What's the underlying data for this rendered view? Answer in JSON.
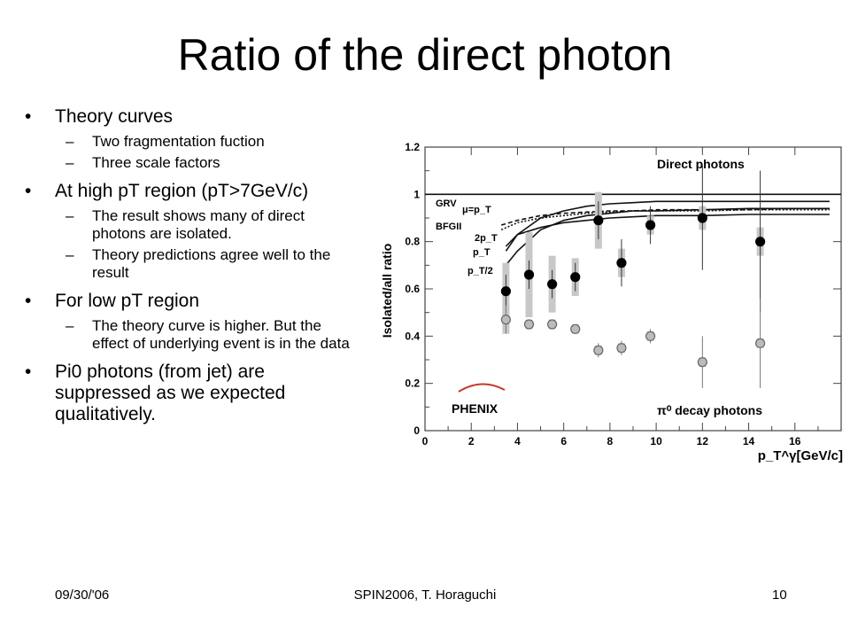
{
  "slide": {
    "title": "Ratio of the direct photon",
    "bullets": [
      {
        "text": "Theory curves",
        "sub": [
          "Two fragmentation fuction",
          "Three scale factors"
        ]
      },
      {
        "text": "At high pT region (pT>7GeV/c)",
        "sub": [
          "The result shows many of direct photons are isolated.",
          "Theory predictions agree well to the result"
        ]
      },
      {
        "text": "For low pT region",
        "sub": [
          "The theory curve is higher. But the effect of underlying event is in the data"
        ]
      },
      {
        "text": "Pi0 photons (from jet) are suppressed as we expected qualitatively.",
        "sub": []
      }
    ]
  },
  "footer": {
    "date": "09/30/'06",
    "center": "SPIN2006, T. Horaguchi",
    "page": "10"
  },
  "chart_data": {
    "type": "scatter",
    "title": "",
    "xlabel": "p_T^γ[GeV/c]",
    "ylabel": "Isolated/all ratio",
    "xlim": [
      0,
      18
    ],
    "ylim": [
      0,
      1.2
    ],
    "xticks": [
      "0",
      "2",
      "4",
      "6",
      "8",
      "10",
      "12",
      "14",
      "16"
    ],
    "yticks": [
      "0",
      "0.2",
      "0.4",
      "0.6",
      "0.8",
      "1",
      "1.2"
    ],
    "annotations": {
      "direct": "Direct photons",
      "pi0": "π⁰ decay photons",
      "logo": "PHENIX"
    },
    "theory_labels": [
      "GRV",
      "μ=p_T",
      "BFGII",
      "2p_T",
      "p_T",
      "p_T/2"
    ],
    "series": [
      {
        "name": "Direct photons",
        "marker": "filled-circle",
        "color": "#000000",
        "x": [
          3.5,
          4.5,
          5.5,
          6.5,
          7.5,
          8.5,
          9.75,
          12.0,
          14.5
        ],
        "y": [
          0.59,
          0.66,
          0.62,
          0.65,
          0.89,
          0.71,
          0.87,
          0.9,
          0.8
        ],
        "err": [
          0.07,
          0.06,
          0.06,
          0.06,
          0.08,
          0.1,
          0.08,
          0.22,
          0.3
        ],
        "sys": [
          0.12,
          0.18,
          0.12,
          0.08,
          0.12,
          0.06,
          0.04,
          0.05,
          0.06
        ]
      },
      {
        "name": "π⁰ decay photons",
        "marker": "open-circle",
        "color": "#bbbbbb",
        "x": [
          3.5,
          4.5,
          5.5,
          6.5,
          7.5,
          8.5,
          9.75,
          12.0,
          14.5
        ],
        "y": [
          0.47,
          0.45,
          0.45,
          0.43,
          0.34,
          0.35,
          0.4,
          0.29,
          0.37
        ],
        "err": [
          0.06,
          0.02,
          0.02,
          0.02,
          0.03,
          0.03,
          0.03,
          0.11,
          0.19
        ],
        "sys": [
          0.06,
          0.02,
          0.02,
          0.02,
          0.02,
          0.02,
          0.02,
          0.02,
          0.02
        ]
      }
    ],
    "curves": [
      {
        "style": "solid",
        "x": [
          3.5,
          4,
          5,
          6,
          7,
          8,
          9,
          10,
          12,
          14,
          16,
          17.5
        ],
        "y": [
          0.76,
          0.83,
          0.9,
          0.93,
          0.95,
          0.96,
          0.965,
          0.97,
          0.97,
          0.97,
          0.97,
          0.97
        ]
      },
      {
        "style": "solid",
        "x": [
          3.5,
          4,
          5,
          6,
          7,
          8,
          9,
          10,
          12,
          14,
          16,
          17.5
        ],
        "y": [
          0.7,
          0.76,
          0.85,
          0.89,
          0.91,
          0.92,
          0.93,
          0.93,
          0.935,
          0.94,
          0.94,
          0.94
        ]
      },
      {
        "style": "solid",
        "x": [
          3.5,
          4,
          5,
          6,
          7,
          8,
          9,
          10,
          12,
          14,
          16,
          17.5
        ],
        "y": [
          0.78,
          0.83,
          0.86,
          0.88,
          0.89,
          0.9,
          0.905,
          0.91,
          0.91,
          0.915,
          0.915,
          0.915
        ]
      },
      {
        "style": "dashed",
        "x": [
          3.3,
          4,
          5,
          6,
          7,
          8,
          9,
          10,
          12,
          14,
          16,
          17.5
        ],
        "y": [
          0.87,
          0.89,
          0.91,
          0.92,
          0.925,
          0.93,
          0.93,
          0.935,
          0.935,
          0.935,
          0.94,
          0.94
        ]
      },
      {
        "style": "dotted",
        "x": [
          3.3,
          4,
          5,
          6,
          7,
          8,
          9,
          10,
          12,
          14,
          16,
          17.5
        ],
        "y": [
          0.85,
          0.88,
          0.9,
          0.91,
          0.92,
          0.925,
          0.93,
          0.93,
          0.93,
          0.935,
          0.935,
          0.935
        ]
      },
      {
        "style": "solid",
        "x": [
          0,
          18
        ],
        "y": [
          1.0,
          1.0
        ]
      }
    ]
  }
}
